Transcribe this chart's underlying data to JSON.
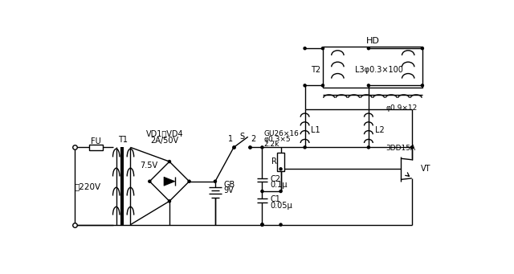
{
  "bg_color": "#ffffff",
  "labels": {
    "FU": "FU",
    "T1": "T1",
    "VD1_VD4": "VD1～VD4",
    "2A50V": "2A/50V",
    "7_5V": "7.5V",
    "220V": "～220V",
    "GB": "GB",
    "9V": "9V",
    "S_label": "S",
    "label_1": "1",
    "label_2": "2",
    "GU": "GU26×16",
    "phi_coil": "φ0.3×5",
    "R_val": "2.2k",
    "R_label": "R",
    "C2_label": "C2",
    "C2_val": "0.1μ",
    "C1_label": "C1",
    "C1_val": "0.05μ",
    "L1_label": "L1",
    "L2_label": "L2",
    "phi_L2": "φ0.9×12",
    "VT_label": "VT",
    "transistor": "3DD15A",
    "HD": "HD",
    "T2": "T2",
    "L3": "L3φ0.3×100"
  }
}
